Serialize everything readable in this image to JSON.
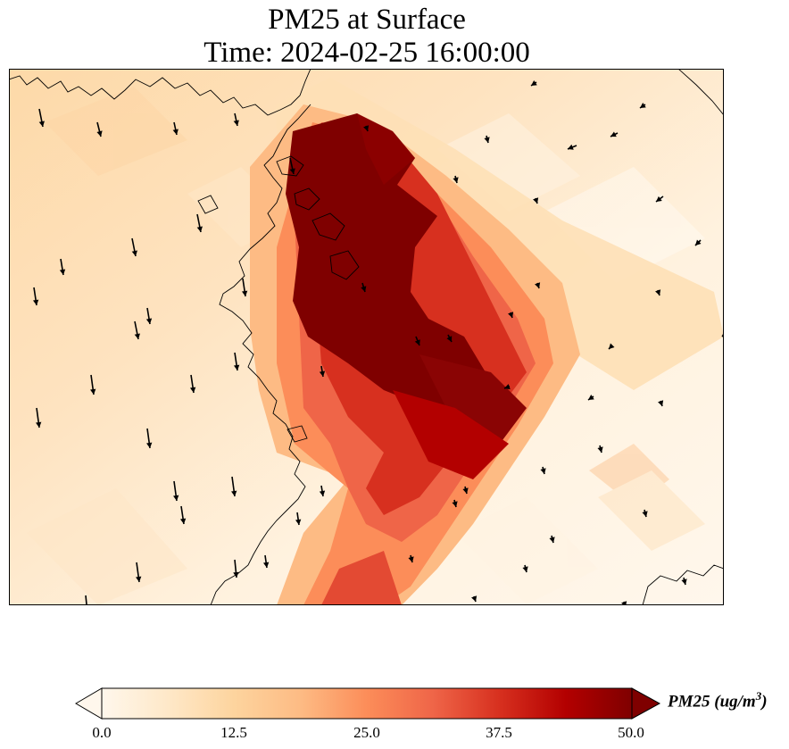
{
  "title": {
    "line1": "PM25 at Surface",
    "line2": "Time: 2024-02-25 16:00:00"
  },
  "map": {
    "field": "PM25",
    "colormap": "OrRd",
    "colors": {
      "low": "#fff7ec",
      "mid_low": "#fdd49e",
      "mid": "#fc8d59",
      "mid_high": "#d7301f",
      "high": "#7f0000",
      "coastline": "#000000",
      "vector": "#000000"
    },
    "plume_cells": [
      {
        "id": "core-1",
        "level": 50
      },
      {
        "id": "core-2",
        "level": 50
      },
      {
        "id": "core-3",
        "level": 50
      },
      {
        "id": "core-4",
        "level": 48
      },
      {
        "id": "mid-1",
        "level": 38
      },
      {
        "id": "mid-2",
        "level": 36
      },
      {
        "id": "mid-3",
        "level": 30
      },
      {
        "id": "mid-4",
        "level": 28
      },
      {
        "id": "edge-1",
        "level": 18
      },
      {
        "id": "edge-2",
        "level": 14
      }
    ]
  },
  "colorbar": {
    "label_main": "PM25 (ug/m",
    "label_sup": "3",
    "label_close": ")",
    "min": 0.0,
    "max": 50.0,
    "extend": "both",
    "ticks": [
      "0.0",
      "12.5",
      "25.0",
      "37.5",
      "50.0"
    ],
    "tick_values": [
      0.0,
      12.5,
      25.0,
      37.5,
      50.0
    ]
  }
}
